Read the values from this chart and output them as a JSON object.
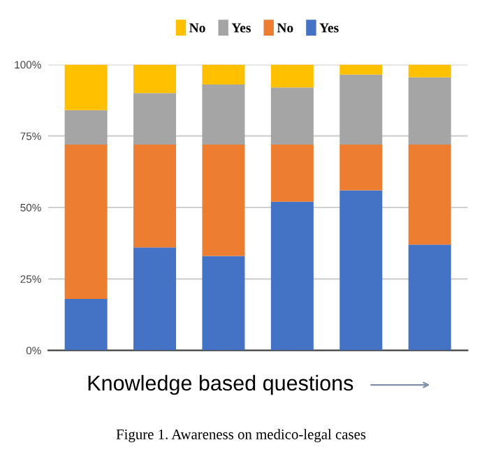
{
  "chart_data": {
    "type": "bar",
    "stacked": true,
    "categories": [
      null,
      null,
      null,
      null,
      null,
      null
    ],
    "series": [
      {
        "name": "Yes",
        "color": "#4472c4",
        "values": [
          18,
          36,
          33,
          52,
          56,
          37
        ]
      },
      {
        "name": "No",
        "color": "#ed7d31",
        "values": [
          54,
          36,
          39,
          20,
          16,
          35
        ]
      },
      {
        "name": "Yes",
        "color": "#a5a5a5",
        "values": [
          12,
          18,
          21,
          20,
          24.5,
          23.5
        ]
      },
      {
        "name": "No",
        "color": "#ffc000",
        "values": [
          16,
          10,
          7,
          8,
          3.5,
          4.5
        ]
      }
    ],
    "ylim": [
      0,
      100
    ],
    "yticks": [
      {
        "value": 0,
        "label": "0%"
      },
      {
        "value": 25,
        "label": "25%"
      },
      {
        "value": 50,
        "label": "50%"
      },
      {
        "value": 75,
        "label": "75%"
      },
      {
        "value": 100,
        "label": "100%"
      }
    ],
    "grid": "y",
    "legend": "top",
    "xlabel": "Knowledge based questions",
    "annotations": [
      "Figure 1. Awareness on medico-legal cases"
    ]
  }
}
